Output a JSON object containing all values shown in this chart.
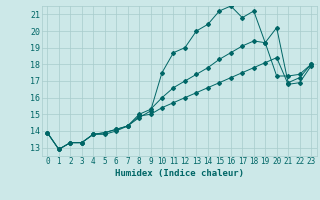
{
  "xlabel": "Humidex (Indice chaleur)",
  "ylabel": "",
  "bg_color": "#cce8e8",
  "grid_color": "#a8cccc",
  "line_color": "#006666",
  "xlim": [
    -0.5,
    23.5
  ],
  "ylim": [
    12.5,
    21.5
  ],
  "xticks": [
    0,
    1,
    2,
    3,
    4,
    5,
    6,
    7,
    8,
    9,
    10,
    11,
    12,
    13,
    14,
    15,
    16,
    17,
    18,
    19,
    20,
    21,
    22,
    23
  ],
  "yticks": [
    13,
    14,
    15,
    16,
    17,
    18,
    19,
    20,
    21
  ],
  "line1": {
    "x": [
      0,
      1,
      2,
      3,
      4,
      5,
      6,
      7,
      8,
      9,
      10,
      11,
      12,
      13,
      14,
      15,
      16,
      17,
      18,
      19,
      20,
      21,
      22,
      23
    ],
    "y": [
      13.9,
      12.9,
      13.3,
      13.3,
      13.8,
      13.8,
      14.0,
      14.3,
      14.8,
      15.2,
      17.5,
      18.7,
      19.0,
      20.0,
      20.4,
      21.2,
      21.5,
      20.8,
      21.2,
      19.3,
      20.2,
      16.9,
      17.2,
      18.0
    ]
  },
  "line2": {
    "x": [
      0,
      1,
      2,
      3,
      4,
      5,
      6,
      7,
      8,
      9,
      10,
      11,
      12,
      13,
      14,
      15,
      16,
      17,
      18,
      19,
      20,
      21,
      22,
      23
    ],
    "y": [
      13.9,
      12.9,
      13.3,
      13.3,
      13.8,
      13.9,
      14.1,
      14.3,
      15.0,
      15.3,
      16.0,
      16.6,
      17.0,
      17.4,
      17.8,
      18.3,
      18.7,
      19.1,
      19.4,
      19.3,
      17.3,
      17.3,
      17.4,
      18.0
    ]
  },
  "line3": {
    "x": [
      0,
      1,
      2,
      3,
      4,
      5,
      6,
      7,
      8,
      9,
      10,
      11,
      12,
      13,
      14,
      15,
      16,
      17,
      18,
      19,
      20,
      21,
      22,
      23
    ],
    "y": [
      13.9,
      12.9,
      13.3,
      13.3,
      13.8,
      13.9,
      14.1,
      14.3,
      14.9,
      15.0,
      15.4,
      15.7,
      16.0,
      16.3,
      16.6,
      16.9,
      17.2,
      17.5,
      17.8,
      18.1,
      18.4,
      16.8,
      16.9,
      17.9
    ]
  }
}
